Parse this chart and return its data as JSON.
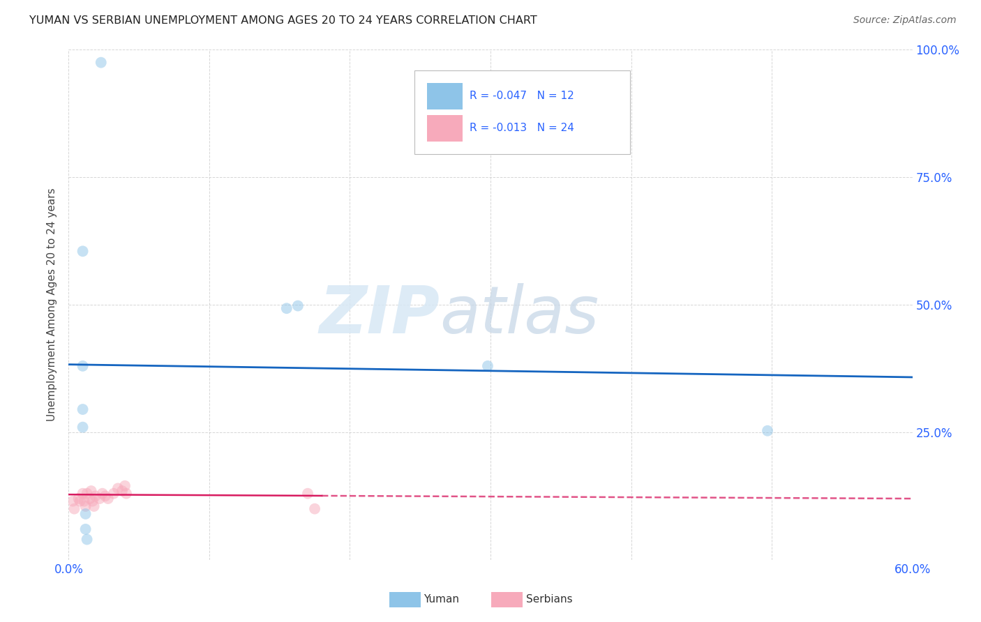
{
  "title": "YUMAN VS SERBIAN UNEMPLOYMENT AMONG AGES 20 TO 24 YEARS CORRELATION CHART",
  "source": "Source: ZipAtlas.com",
  "ylabel": "Unemployment Among Ages 20 to 24 years",
  "xlim": [
    0.0,
    0.6
  ],
  "ylim": [
    0.0,
    1.0
  ],
  "xticks": [
    0.0,
    0.1,
    0.2,
    0.3,
    0.4,
    0.5,
    0.6
  ],
  "xtick_labels": [
    "0.0%",
    "",
    "",
    "",
    "",
    "",
    "60.0%"
  ],
  "ytick_labels": [
    "",
    "25.0%",
    "50.0%",
    "75.0%",
    "100.0%"
  ],
  "yticks": [
    0.0,
    0.25,
    0.5,
    0.75,
    1.0
  ],
  "yuman_x": [
    0.023,
    0.01,
    0.155,
    0.163,
    0.01,
    0.01,
    0.01,
    0.298,
    0.497,
    0.012,
    0.012,
    0.013
  ],
  "yuman_y": [
    0.975,
    0.605,
    0.493,
    0.498,
    0.38,
    0.295,
    0.26,
    0.38,
    0.253,
    0.09,
    0.06,
    0.04
  ],
  "serbian_x": [
    0.003,
    0.004,
    0.007,
    0.008,
    0.01,
    0.011,
    0.012,
    0.013,
    0.015,
    0.016,
    0.017,
    0.018,
    0.019,
    0.022,
    0.024,
    0.026,
    0.028,
    0.032,
    0.035,
    0.038,
    0.04,
    0.041,
    0.17,
    0.175
  ],
  "serbian_y": [
    0.115,
    0.1,
    0.12,
    0.115,
    0.13,
    0.115,
    0.105,
    0.13,
    0.12,
    0.135,
    0.115,
    0.105,
    0.125,
    0.12,
    0.13,
    0.125,
    0.12,
    0.13,
    0.14,
    0.135,
    0.145,
    0.13,
    0.13,
    0.1
  ],
  "yuman_color": "#8EC4E8",
  "serbian_color": "#F7AABB",
  "yuman_trend_color": "#1565C0",
  "serbian_trend_color": "#D81B60",
  "yuman_R": -0.047,
  "yuman_N": 12,
  "serbian_R": -0.013,
  "serbian_N": 24,
  "background_color": "#FFFFFF",
  "grid_color": "#CCCCCC",
  "watermark_zip": "ZIP",
  "watermark_atlas": "atlas",
  "marker_size": 130,
  "marker_alpha": 0.5,
  "trend_solid_end": 0.18,
  "yuman_trend_start_y": 0.383,
  "yuman_trend_end_y": 0.358,
  "serbian_trend_start_y": 0.128,
  "serbian_trend_end_y": 0.12
}
